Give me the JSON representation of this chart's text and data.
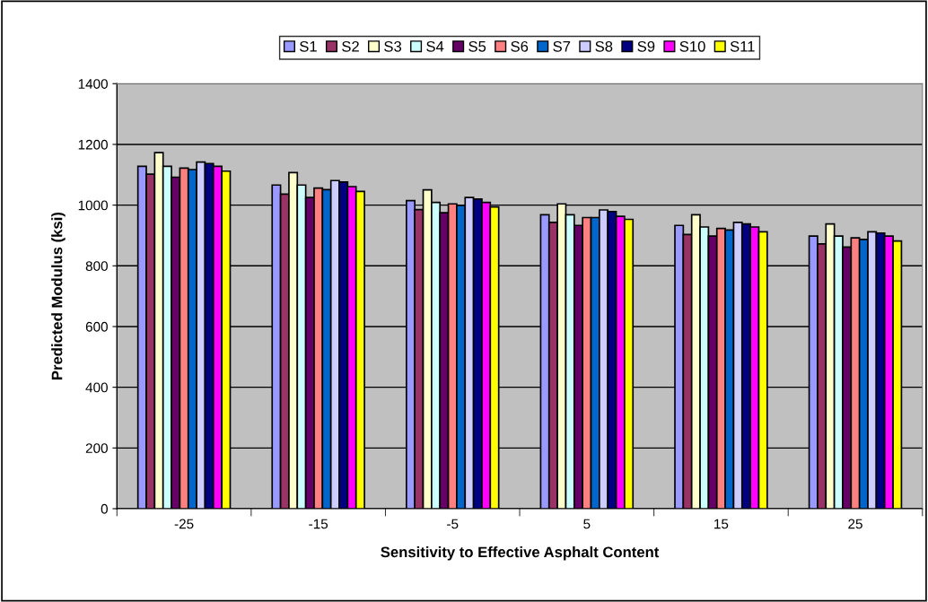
{
  "chart_data": {
    "type": "bar",
    "xlabel": "Sensitivity to Effective Asphalt Content",
    "ylabel": "Predicted Modulus (ksi)",
    "categories": [
      "-25",
      "-15",
      "-5",
      "5",
      "15",
      "25"
    ],
    "series": [
      {
        "name": "S1",
        "color": "#9999ff",
        "values": [
          1128,
          1066,
          1015,
          968,
          933,
          898
        ]
      },
      {
        "name": "S2",
        "color": "#993366",
        "values": [
          1102,
          1036,
          985,
          943,
          903,
          872
        ]
      },
      {
        "name": "S3",
        "color": "#ffffcc",
        "values": [
          1173,
          1107,
          1050,
          1004,
          968,
          938
        ]
      },
      {
        "name": "S4",
        "color": "#ccffff",
        "values": [
          1128,
          1066,
          1009,
          968,
          928,
          898
        ]
      },
      {
        "name": "S5",
        "color": "#660066",
        "values": [
          1092,
          1025,
          975,
          933,
          898,
          862
        ]
      },
      {
        "name": "S6",
        "color": "#ff8080",
        "values": [
          1122,
          1056,
          1004,
          959,
          923,
          892
        ]
      },
      {
        "name": "S7",
        "color": "#0066cc",
        "values": [
          1117,
          1051,
          999,
          959,
          918,
          887
        ]
      },
      {
        "name": "S8",
        "color": "#ccccff",
        "values": [
          1142,
          1081,
          1025,
          984,
          943,
          912
        ]
      },
      {
        "name": "S9",
        "color": "#000080",
        "values": [
          1137,
          1076,
          1020,
          979,
          938,
          908
        ]
      },
      {
        "name": "S10",
        "color": "#ff00ff",
        "values": [
          1128,
          1061,
          1009,
          963,
          928,
          898
        ]
      },
      {
        "name": "S11",
        "color": "#ffff00",
        "values": [
          1112,
          1045,
          994,
          953,
          912,
          882
        ]
      }
    ],
    "ylim": [
      0,
      1400
    ],
    "yticks": [
      0,
      200,
      400,
      600,
      800,
      1000,
      1200,
      1400
    ],
    "grid": "y",
    "legend": "top"
  }
}
